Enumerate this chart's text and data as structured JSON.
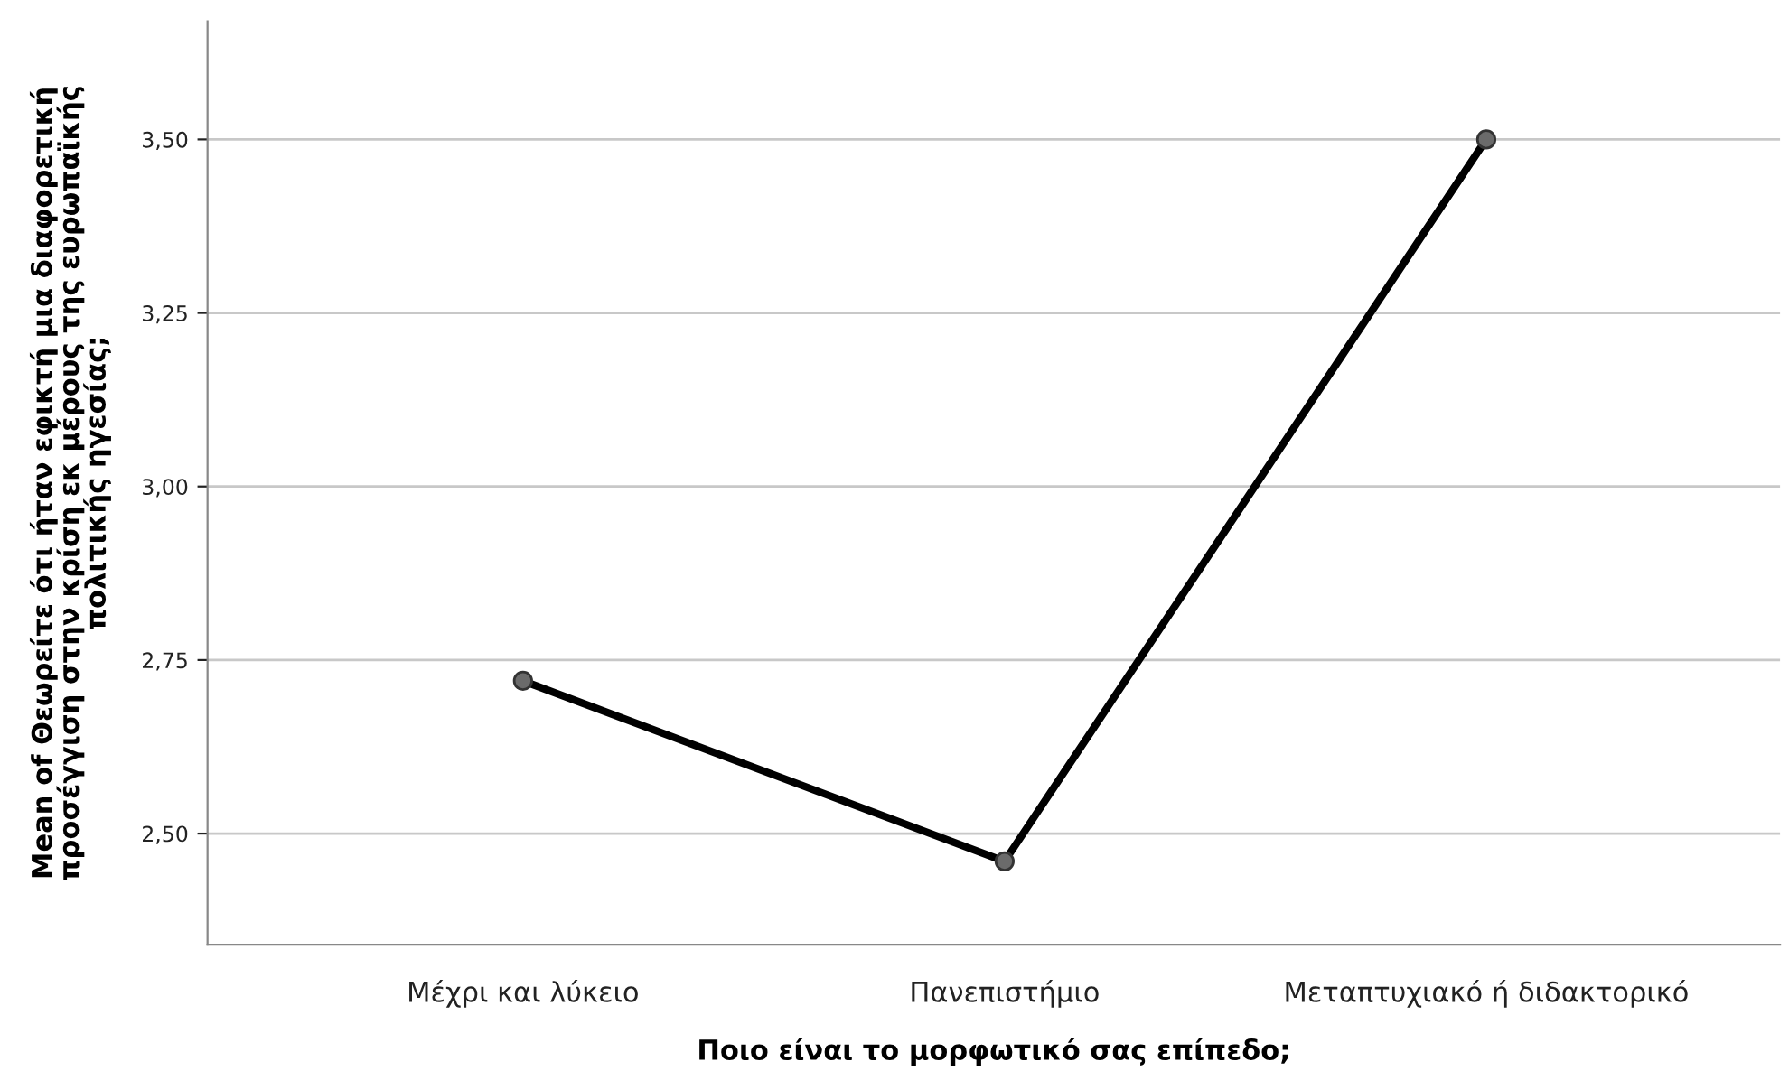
{
  "chart_data": {
    "type": "line",
    "categories": [
      "Μέχρι και λύκειο",
      "Πανεπιστήμιο",
      "Μεταπτυχιακό ή διδακτορικό"
    ],
    "series": [
      {
        "color": "#000000",
        "values": [
          2.72,
          2.46,
          3.5
        ]
      }
    ],
    "xlabel": "Ποιο είναι το μορφωτικό σας επίπεδο;",
    "ylabel": "Mean of Θεωρείτε ότι ήταν εφικτή μια διαφορετική\nπροσέγγιση στην κρίση εκ μέρους της ευρωπαϊκής\nπολιτικής ηγεσίας;",
    "ylim": [
      2.34,
      3.67
    ],
    "yticks": [
      {
        "value": 2.5,
        "label": "2,50"
      },
      {
        "value": 2.75,
        "label": "2,75"
      },
      {
        "value": 3.0,
        "label": "3,00"
      },
      {
        "value": 3.25,
        "label": "3,25"
      },
      {
        "value": 3.5,
        "label": "3,50"
      }
    ],
    "grid": "y",
    "marker": "circle",
    "line_style": "solid"
  }
}
